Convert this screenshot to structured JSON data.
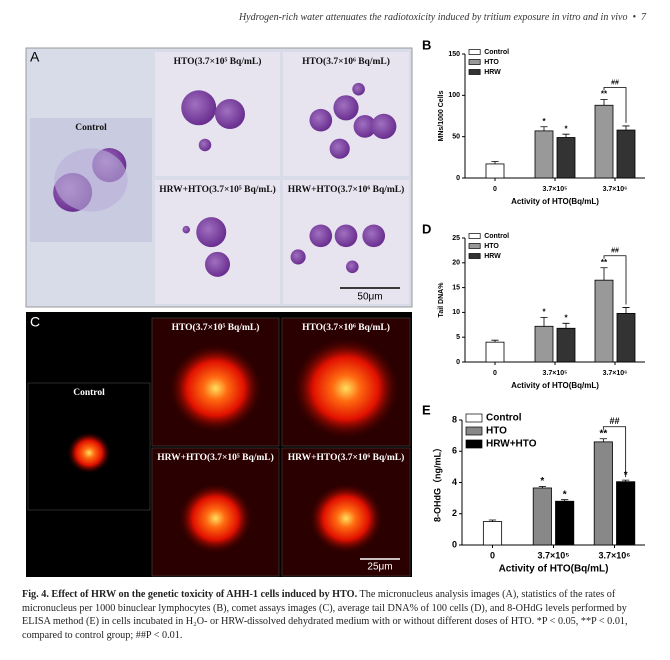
{
  "header": {
    "running_title": "Hydrogen-rich water attenuates the radiotoxicity induced by tritium exposure in vitro and in vivo",
    "page": "7"
  },
  "panel_a": {
    "label": "A",
    "images": [
      {
        "label": "Control"
      },
      {
        "label": "HTO(3.7×10⁵ Bq/mL)"
      },
      {
        "label": "HTO(3.7×10⁶ Bq/mL)"
      },
      {
        "label": "HRW+HTO(3.7×10⁵ Bq/mL)"
      },
      {
        "label": "HRW+HTO(3.7×10⁶ Bq/mL)"
      }
    ],
    "scale_bar": "50μm"
  },
  "panel_c": {
    "label": "C",
    "images": [
      {
        "label": "Control"
      },
      {
        "label": "HTO(3.7×10⁵ Bq/mL)"
      },
      {
        "label": "HTO(3.7×10⁶ Bq/mL)"
      },
      {
        "label": "HRW+HTO(3.7×10⁵ Bq/mL)"
      },
      {
        "label": "HRW+HTO(3.7×10⁶ Bq/mL)"
      }
    ],
    "scale_bar": "25μm"
  },
  "chart_data": [
    {
      "type": "bar",
      "panel_label": "B",
      "ylabel": "MNs/1000 Cells",
      "xlabel": "Activity of HTO(Bq/mL)",
      "categories": [
        "0",
        "3.7×10⁵",
        "3.7×10⁶"
      ],
      "ylim": [
        0,
        150
      ],
      "yticks": [
        0,
        50,
        100,
        150
      ],
      "legend": "upper left",
      "series": [
        {
          "name": "Control",
          "color": "#ffffff",
          "values": [
            17,
            null,
            null
          ],
          "errors": [
            3,
            null,
            null
          ],
          "significance": [
            null,
            null,
            null
          ]
        },
        {
          "name": "HTO",
          "color": "#999999",
          "values": [
            null,
            57,
            88
          ],
          "errors": [
            null,
            5,
            7
          ],
          "significance": [
            null,
            "*",
            "**"
          ]
        },
        {
          "name": "HRW",
          "color": "#333333",
          "values": [
            null,
            49,
            58
          ],
          "errors": [
            null,
            4,
            5
          ],
          "significance": [
            null,
            "*",
            null
          ]
        }
      ],
      "comparison": "##"
    },
    {
      "type": "bar",
      "panel_label": "D",
      "ylabel": "Tail DNA%",
      "xlabel": "Activity of HTO(Bq/mL)",
      "categories": [
        "0",
        "3.7×10⁵",
        "3.7×10⁶"
      ],
      "ylim": [
        0,
        25
      ],
      "yticks": [
        0,
        5,
        10,
        15,
        20,
        25
      ],
      "legend": "upper left",
      "series": [
        {
          "name": "Control",
          "color": "#ffffff",
          "values": [
            4.0,
            null,
            null
          ],
          "errors": [
            0.4,
            null,
            null
          ],
          "significance": [
            null,
            null,
            null
          ]
        },
        {
          "name": "HTO",
          "color": "#999999",
          "values": [
            null,
            7.2,
            16.5
          ],
          "errors": [
            null,
            1.8,
            2.5
          ],
          "significance": [
            null,
            "*",
            "**"
          ]
        },
        {
          "name": "HRW",
          "color": "#333333",
          "values": [
            null,
            6.8,
            9.8
          ],
          "errors": [
            null,
            1.0,
            1.2
          ],
          "significance": [
            null,
            "*",
            null
          ]
        }
      ],
      "comparison": "##"
    },
    {
      "type": "bar",
      "panel_label": "E",
      "ylabel": "8-OHdG（ng/mL）",
      "xlabel": "Activity of HTO(Bq/mL)",
      "categories": [
        "0",
        "3.7×10⁵",
        "3.7×10⁶"
      ],
      "ylim": [
        0,
        8
      ],
      "yticks": [
        0,
        2,
        4,
        6,
        8
      ],
      "legend": "upper left",
      "series": [
        {
          "name": "Control",
          "color": "#ffffff",
          "values": [
            1.5,
            null,
            null
          ],
          "errors": [
            0.1,
            null,
            null
          ],
          "significance": [
            null,
            null,
            null
          ]
        },
        {
          "name": "HTO",
          "color": "#888888",
          "values": [
            null,
            3.65,
            6.6
          ],
          "errors": [
            null,
            0.1,
            0.2
          ],
          "significance": [
            null,
            "*",
            "**"
          ]
        },
        {
          "name": "HRW+HTO",
          "color": "#000000",
          "values": [
            null,
            2.8,
            4.05
          ],
          "errors": [
            null,
            0.1,
            0.1
          ],
          "significance": [
            null,
            "*",
            "*"
          ]
        }
      ],
      "comparison": "##"
    }
  ],
  "caption": {
    "title": "Fig. 4. Effect of HRW on the genetic toxicity of AHH-1 cells induced by HTO.",
    "text": "The micronucleus analysis images (A), statistics of the rates of micronucleus per 1000 binuclear lymphocytes (B), comet assays images (C), average tail DNA% of 100 cells (D), and 8-OHdG levels performed by ELISA method (E) in cells incubated in H₂O- or HRW-dissolved dehydrated medium with or without different doses of HTO. *P < 0.05, **P < 0.01, compared to control group; ##P < 0.01."
  }
}
